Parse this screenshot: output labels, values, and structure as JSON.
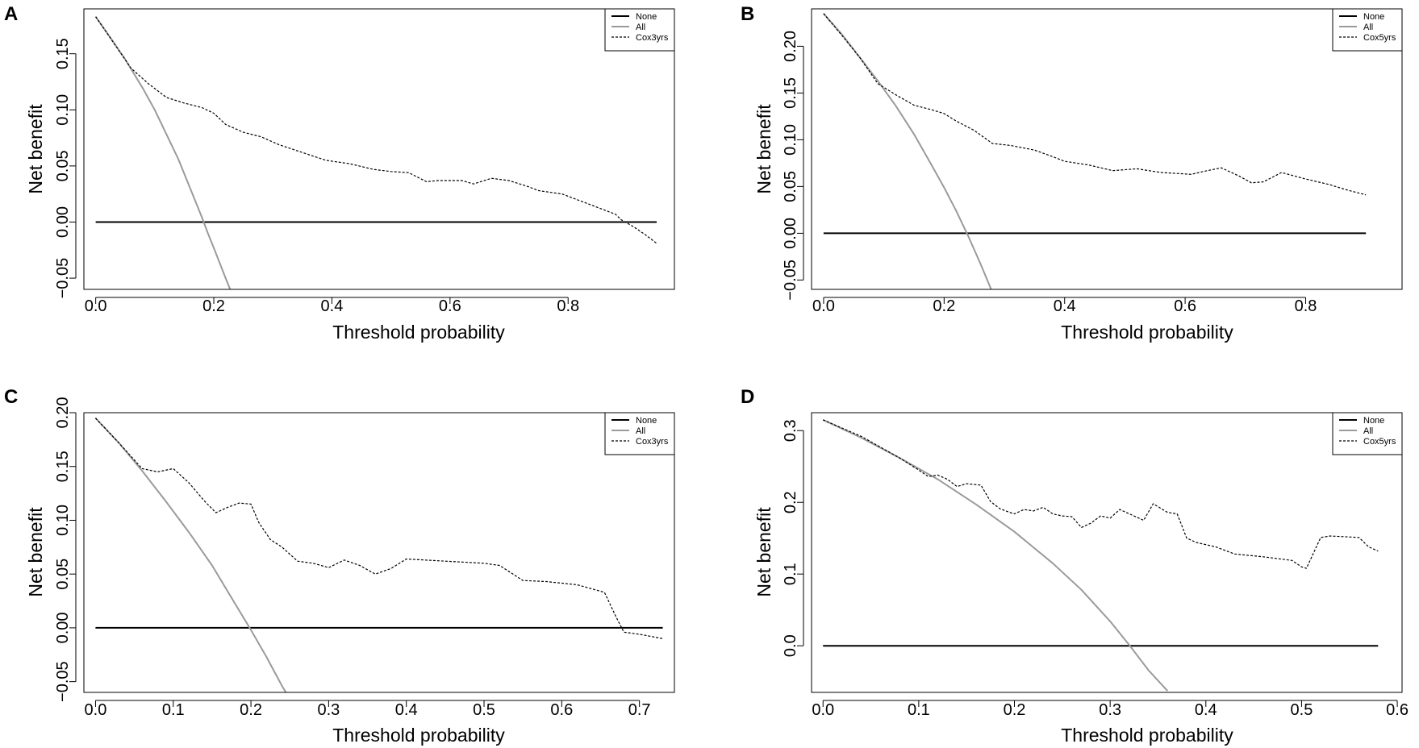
{
  "colors": {
    "none": "#000000",
    "all": "#9a9a9a",
    "model": "#000000",
    "frame": "#000000"
  },
  "chart_data": [
    {
      "panel": "A",
      "type": "line",
      "xlabel": "Threshold probability",
      "ylabel": "Net benefit",
      "xlim": [
        -0.02,
        0.98
      ],
      "ylim": [
        -0.06,
        0.19
      ],
      "xticks": [
        0.0,
        0.2,
        0.4,
        0.6,
        0.8
      ],
      "xtick_labels": [
        "0.0",
        "0.2",
        "0.4",
        "0.6",
        "0.8"
      ],
      "yticks": [
        -0.05,
        0.0,
        0.05,
        0.1,
        0.15
      ],
      "ytick_labels": [
        "−0.05",
        "0.00",
        "0.05",
        "0.10",
        "0.15"
      ],
      "legend": [
        "None",
        "All",
        "Cox3yrs"
      ],
      "series": [
        {
          "name": "None",
          "style": "solid",
          "x": [
            0.0,
            0.95
          ],
          "y": [
            0.0,
            0.0
          ]
        },
        {
          "name": "All",
          "style": "gray",
          "x": [
            0.0,
            0.02,
            0.05,
            0.08,
            0.1,
            0.12,
            0.14,
            0.16,
            0.18,
            0.19,
            0.2,
            0.22,
            0.23,
            0.24
          ],
          "y": [
            0.183,
            0.168,
            0.145,
            0.119,
            0.1,
            0.078,
            0.056,
            0.03,
            0.004,
            -0.01,
            -0.023,
            -0.05,
            -0.063,
            -0.077
          ]
        },
        {
          "name": "Cox3yrs",
          "style": "dashed",
          "x": [
            0.0,
            0.03,
            0.06,
            0.09,
            0.12,
            0.15,
            0.18,
            0.2,
            0.22,
            0.25,
            0.28,
            0.31,
            0.35,
            0.39,
            0.43,
            0.47,
            0.5,
            0.53,
            0.56,
            0.58,
            0.62,
            0.64,
            0.67,
            0.7,
            0.73,
            0.75,
            0.79,
            0.83,
            0.86,
            0.88,
            0.89,
            0.91,
            0.93,
            0.95
          ],
          "y": [
            0.183,
            0.16,
            0.137,
            0.123,
            0.111,
            0.106,
            0.102,
            0.097,
            0.087,
            0.08,
            0.076,
            0.069,
            0.062,
            0.055,
            0.052,
            0.047,
            0.045,
            0.044,
            0.036,
            0.037,
            0.037,
            0.034,
            0.039,
            0.037,
            0.032,
            0.028,
            0.025,
            0.017,
            0.011,
            0.007,
            0.002,
            -0.004,
            -0.011,
            -0.019
          ]
        }
      ]
    },
    {
      "panel": "B",
      "type": "line",
      "xlabel": "Threshold probability",
      "ylabel": "Net benefit",
      "xlim": [
        -0.02,
        0.96
      ],
      "ylim": [
        -0.06,
        0.24
      ],
      "xticks": [
        0.0,
        0.2,
        0.4,
        0.6,
        0.8
      ],
      "xtick_labels": [
        "0.0",
        "0.2",
        "0.4",
        "0.6",
        "0.8"
      ],
      "yticks": [
        -0.05,
        0.0,
        0.05,
        0.1,
        0.15,
        0.2
      ],
      "ytick_labels": [
        "−0.05",
        "0.00",
        "0.05",
        "0.10",
        "0.15",
        "0.20"
      ],
      "legend": [
        "None",
        "All",
        "Cox5yrs"
      ],
      "series": [
        {
          "name": "None",
          "style": "solid",
          "x": [
            0.0,
            0.9
          ],
          "y": [
            0.0,
            0.0
          ]
        },
        {
          "name": "All",
          "style": "gray",
          "x": [
            0.0,
            0.03,
            0.06,
            0.09,
            0.12,
            0.15,
            0.18,
            0.2,
            0.22,
            0.24,
            0.26,
            0.28
          ],
          "y": [
            0.235,
            0.213,
            0.188,
            0.163,
            0.136,
            0.106,
            0.072,
            0.049,
            0.024,
            -0.003,
            -0.032,
            -0.063
          ]
        },
        {
          "name": "Cox5yrs",
          "style": "dashed",
          "x": [
            0.0,
            0.03,
            0.06,
            0.09,
            0.12,
            0.15,
            0.18,
            0.2,
            0.22,
            0.25,
            0.28,
            0.31,
            0.35,
            0.38,
            0.4,
            0.44,
            0.48,
            0.52,
            0.56,
            0.61,
            0.63,
            0.66,
            0.69,
            0.71,
            0.73,
            0.76,
            0.8,
            0.84,
            0.87,
            0.9
          ],
          "y": [
            0.235,
            0.212,
            0.188,
            0.16,
            0.148,
            0.137,
            0.132,
            0.128,
            0.12,
            0.11,
            0.096,
            0.094,
            0.089,
            0.082,
            0.077,
            0.073,
            0.067,
            0.069,
            0.065,
            0.063,
            0.066,
            0.07,
            0.061,
            0.054,
            0.055,
            0.065,
            0.058,
            0.052,
            0.046,
            0.041
          ]
        }
      ]
    },
    {
      "panel": "C",
      "type": "line",
      "xlabel": "Threshold probability",
      "ylabel": "Net benefit",
      "xlim": [
        -0.015,
        0.745
      ],
      "ylim": [
        -0.06,
        0.2
      ],
      "xticks": [
        0.0,
        0.1,
        0.2,
        0.3,
        0.4,
        0.5,
        0.6,
        0.7
      ],
      "xtick_labels": [
        "0.0",
        "0.1",
        "0.2",
        "0.3",
        "0.4",
        "0.5",
        "0.6",
        "0.7"
      ],
      "yticks": [
        -0.05,
        0.0,
        0.05,
        0.1,
        0.15,
        0.2
      ],
      "ytick_labels": [
        "−0.05",
        "0.00",
        "0.05",
        "0.10",
        "0.15",
        "0.20"
      ],
      "legend": [
        "None",
        "All",
        "Cox3yrs"
      ],
      "series": [
        {
          "name": "None",
          "style": "solid",
          "x": [
            0.0,
            0.73
          ],
          "y": [
            0.0,
            0.0
          ]
        },
        {
          "name": "All",
          "style": "gray",
          "x": [
            0.0,
            0.03,
            0.06,
            0.09,
            0.12,
            0.15,
            0.18,
            0.2,
            0.22,
            0.24,
            0.25
          ],
          "y": [
            0.195,
            0.172,
            0.146,
            0.118,
            0.089,
            0.058,
            0.022,
            -0.002,
            -0.027,
            -0.054,
            -0.066
          ]
        },
        {
          "name": "Cox3yrs",
          "style": "dashed",
          "x": [
            0.0,
            0.03,
            0.06,
            0.08,
            0.1,
            0.12,
            0.14,
            0.155,
            0.17,
            0.185,
            0.2,
            0.21,
            0.225,
            0.24,
            0.26,
            0.28,
            0.3,
            0.32,
            0.34,
            0.36,
            0.38,
            0.4,
            0.45,
            0.5,
            0.52,
            0.55,
            0.58,
            0.62,
            0.64,
            0.655,
            0.67,
            0.68,
            0.7,
            0.73
          ],
          "y": [
            0.195,
            0.172,
            0.148,
            0.145,
            0.148,
            0.135,
            0.118,
            0.107,
            0.112,
            0.116,
            0.115,
            0.098,
            0.082,
            0.075,
            0.062,
            0.06,
            0.056,
            0.063,
            0.058,
            0.05,
            0.055,
            0.064,
            0.062,
            0.06,
            0.058,
            0.044,
            0.043,
            0.04,
            0.036,
            0.033,
            0.01,
            -0.004,
            -0.006,
            -0.01
          ]
        }
      ]
    },
    {
      "panel": "D",
      "type": "line",
      "xlabel": "Threshold probability",
      "ylabel": "Net benefit",
      "xlim": [
        -0.012,
        0.605
      ],
      "ylim": [
        -0.065,
        0.325
      ],
      "xticks": [
        0.0,
        0.1,
        0.2,
        0.3,
        0.4,
        0.5,
        0.6
      ],
      "xtick_labels": [
        "0.0",
        "0.1",
        "0.2",
        "0.3",
        "0.4",
        "0.5",
        "0.6"
      ],
      "yticks": [
        0.0,
        0.1,
        0.2,
        0.3
      ],
      "ytick_labels": [
        "0.0",
        "0.1",
        "0.2",
        "0.3"
      ],
      "legend": [
        "None",
        "All",
        "Cox5yrs"
      ],
      "series": [
        {
          "name": "None",
          "style": "solid",
          "x": [
            0.0,
            0.58
          ],
          "y": [
            0.0,
            0.0
          ]
        },
        {
          "name": "All",
          "style": "gray",
          "x": [
            0.0,
            0.04,
            0.08,
            0.12,
            0.16,
            0.2,
            0.24,
            0.27,
            0.3,
            0.32,
            0.34,
            0.36
          ],
          "y": [
            0.315,
            0.29,
            0.262,
            0.232,
            0.197,
            0.159,
            0.115,
            0.078,
            0.034,
            0.001,
            -0.034,
            -0.063
          ]
        },
        {
          "name": "Cox5yrs",
          "style": "dashed",
          "x": [
            0.0,
            0.04,
            0.08,
            0.1,
            0.11,
            0.12,
            0.13,
            0.14,
            0.15,
            0.165,
            0.175,
            0.185,
            0.195,
            0.2,
            0.21,
            0.22,
            0.23,
            0.24,
            0.25,
            0.26,
            0.27,
            0.28,
            0.29,
            0.3,
            0.31,
            0.32,
            0.335,
            0.345,
            0.36,
            0.37,
            0.38,
            0.39,
            0.41,
            0.43,
            0.46,
            0.49,
            0.5,
            0.505,
            0.52,
            0.53,
            0.56,
            0.57,
            0.58
          ],
          "y": [
            0.315,
            0.292,
            0.262,
            0.245,
            0.236,
            0.238,
            0.232,
            0.222,
            0.226,
            0.224,
            0.201,
            0.191,
            0.186,
            0.184,
            0.19,
            0.188,
            0.193,
            0.184,
            0.181,
            0.18,
            0.165,
            0.171,
            0.181,
            0.178,
            0.19,
            0.184,
            0.175,
            0.198,
            0.186,
            0.184,
            0.15,
            0.144,
            0.138,
            0.128,
            0.124,
            0.119,
            0.11,
            0.108,
            0.151,
            0.153,
            0.151,
            0.138,
            0.132
          ]
        }
      ]
    }
  ]
}
